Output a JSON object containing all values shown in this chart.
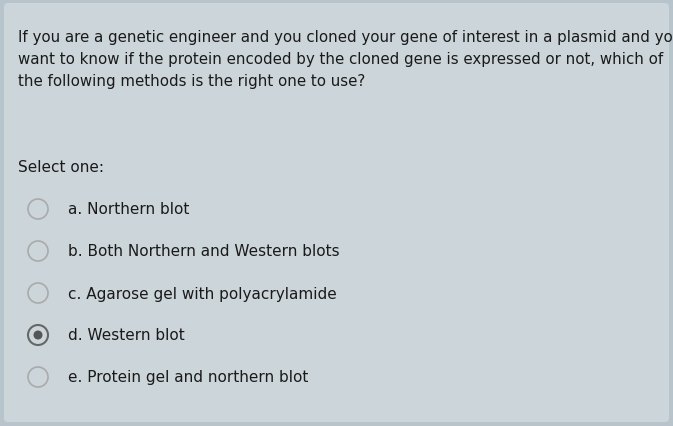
{
  "bg_color": "#b8c4cb",
  "card_color": "#ccd5da",
  "question_text_lines": [
    "If you are a genetic engineer and you cloned your gene of interest in a plasmid and you",
    "want to know if the protein encoded by the cloned gene is expressed or not, which of",
    "the following methods is the right one to use?"
  ],
  "select_label": "Select one:",
  "options": [
    {
      "text": "a. Northern blot",
      "selected": false
    },
    {
      "text": "b. Both Northern and Western blots",
      "selected": false
    },
    {
      "text": "c. Agarose gel with polyacrylamide",
      "selected": false
    },
    {
      "text": "d. Western blot",
      "selected": true
    },
    {
      "text": "e. Protein gel and northern blot",
      "selected": false
    }
  ],
  "question_fontsize": 10.8,
  "option_fontsize": 11.0,
  "select_fontsize": 11.0,
  "radio_empty_edge": "#aaaaaa",
  "radio_empty_face": "#ccd5da",
  "radio_selected_edge": "#666666",
  "radio_selected_face": "#555555",
  "text_color": "#1a1a1a",
  "fig_width": 6.73,
  "fig_height": 4.27,
  "dpi": 100
}
